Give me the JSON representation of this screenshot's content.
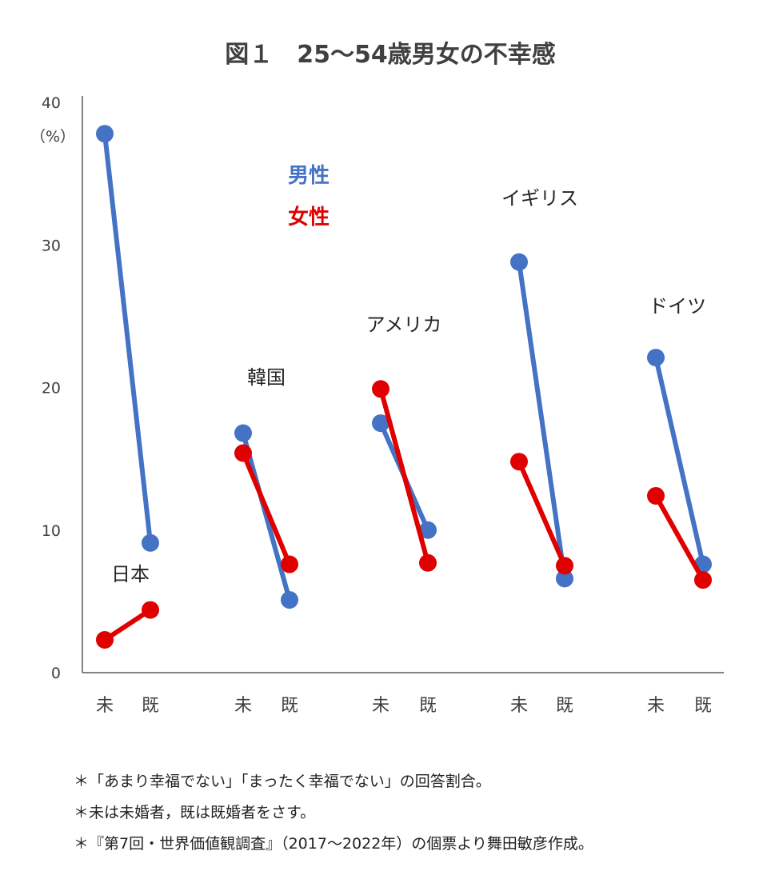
{
  "chart_data": {
    "type": "line",
    "title": "図１　25～54歳男女の不幸感",
    "ylabel": "（%）",
    "ylim": [
      0,
      40
    ],
    "yticks": [
      0,
      10,
      20,
      30,
      40
    ],
    "categories": [
      "未",
      "既"
    ],
    "legend": {
      "placement": "top",
      "entries": [
        {
          "name": "男性",
          "color": "#4472C4"
        },
        {
          "name": "女性",
          "color": "#E00000"
        }
      ]
    },
    "groups": [
      {
        "name": "日本",
        "male": [
          37.8,
          9.1
        ],
        "female": [
          2.3,
          4.4
        ]
      },
      {
        "name": "韓国",
        "male": [
          16.8,
          5.1
        ],
        "female": [
          15.4,
          7.6
        ]
      },
      {
        "name": "アメリカ",
        "male": [
          17.5,
          10.0
        ],
        "female": [
          19.9,
          7.7
        ]
      },
      {
        "name": "イギリス",
        "male": [
          28.8,
          6.6
        ],
        "female": [
          14.8,
          7.5
        ]
      },
      {
        "name": "ドイツ",
        "male": [
          22.1,
          7.6
        ],
        "female": [
          12.4,
          6.5
        ]
      }
    ]
  },
  "notes": [
    "＊「あまり幸福でない」「まったく幸福でない」の回答割合。",
    "＊未は未婚者，既は既婚者をさす。",
    "＊『第7回・世界価値観調査』（2017～2022年）の個票より舞田敏彦作成。"
  ]
}
